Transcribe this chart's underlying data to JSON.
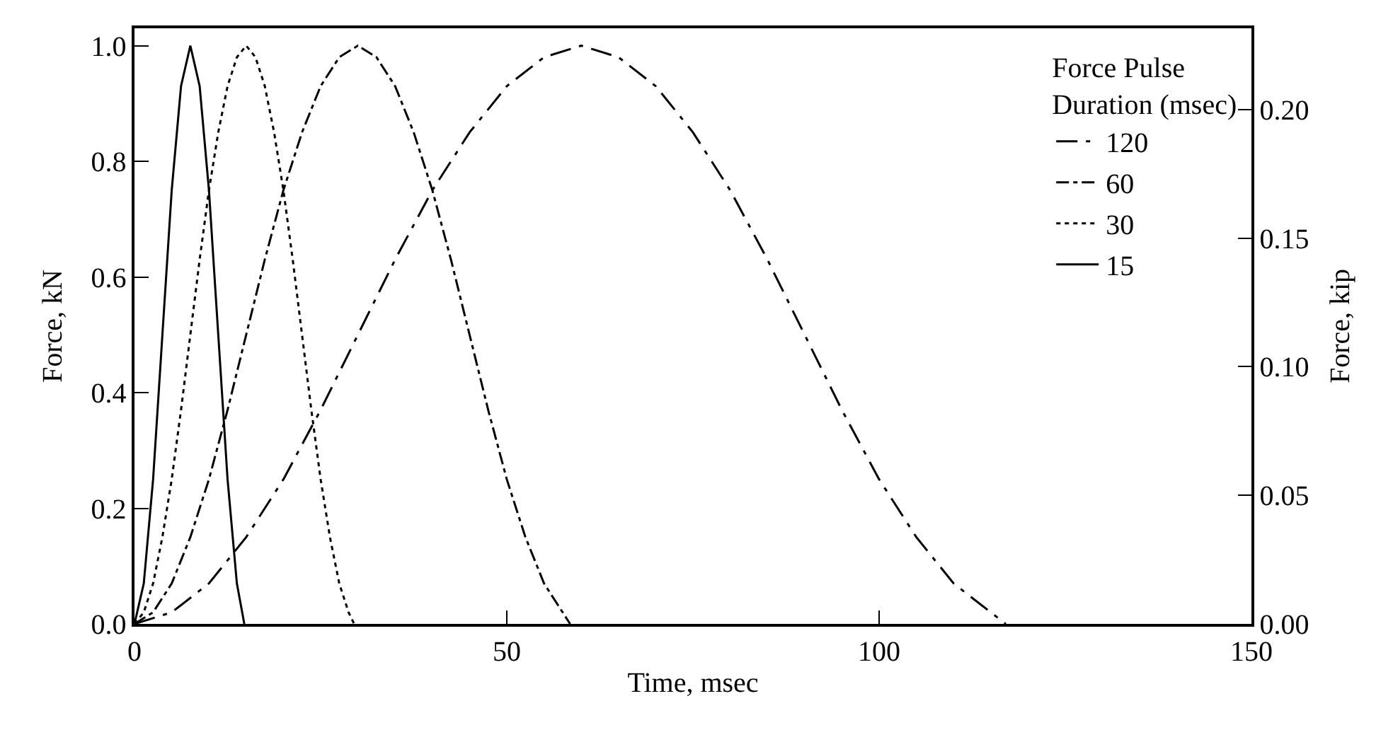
{
  "chart_data": {
    "type": "line",
    "xlabel": "Time, msec",
    "ylabel": "Force, kN",
    "y2label": "Force, kip",
    "legend_title": "Force Pulse\nDuration (msec)",
    "xlim": [
      0,
      150
    ],
    "xticks": [
      0,
      50,
      100,
      150
    ],
    "ylim": [
      0,
      1.03
    ],
    "yticks": [
      {
        "value": 0,
        "label": "0.0"
      },
      0.2,
      0.4,
      0.6,
      0.8,
      {
        "value": 1,
        "label": "1.0"
      }
    ],
    "y2lim": [
      0,
      0.2316
    ],
    "y2ticks": [
      {
        "value": 0,
        "label": "0.00"
      },
      0.05,
      {
        "value": 0.1,
        "label": "0.10"
      },
      0.15,
      {
        "value": 0.2,
        "label": "0.20"
      }
    ],
    "legend": "top right",
    "marker": "none",
    "series": [
      {
        "name": "120",
        "color": "#000000",
        "line_style": "longdashdot",
        "x": [
          0,
          5,
          10,
          15,
          20,
          25,
          30,
          35,
          40,
          45,
          50,
          55,
          60,
          65,
          70,
          75,
          80,
          85,
          90,
          95,
          100,
          105,
          110,
          115,
          117
        ],
        "values": [
          0,
          0.02,
          0.07,
          0.15,
          0.25,
          0.37,
          0.5,
          0.63,
          0.75,
          0.85,
          0.93,
          0.98,
          1.0,
          0.98,
          0.93,
          0.85,
          0.75,
          0.63,
          0.5,
          0.37,
          0.25,
          0.15,
          0.07,
          0.02,
          0
        ]
      },
      {
        "name": "60",
        "color": "#000000",
        "line_style": "dashdot",
        "x": [
          0,
          2.5,
          5,
          7.5,
          10,
          12.5,
          15,
          17.5,
          20,
          22.5,
          25,
          27.5,
          30,
          32.5,
          35,
          37.5,
          40,
          42.5,
          45,
          47.5,
          50,
          52.5,
          55,
          57.5,
          58.5
        ],
        "values": [
          0,
          0.02,
          0.07,
          0.15,
          0.25,
          0.37,
          0.5,
          0.63,
          0.75,
          0.85,
          0.93,
          0.98,
          1.0,
          0.98,
          0.93,
          0.85,
          0.75,
          0.63,
          0.5,
          0.37,
          0.25,
          0.15,
          0.07,
          0.02,
          0
        ]
      },
      {
        "name": "30",
        "color": "#000000",
        "line_style": "dotted",
        "x": [
          0,
          1.25,
          2.5,
          3.75,
          5,
          6.25,
          7.5,
          8.75,
          10,
          11.25,
          12.5,
          13.75,
          15,
          16.25,
          17.5,
          18.75,
          20,
          21.25,
          22.5,
          23.75,
          25,
          26.25,
          27.5,
          28.75,
          29.5
        ],
        "values": [
          0,
          0.02,
          0.07,
          0.15,
          0.25,
          0.37,
          0.5,
          0.63,
          0.75,
          0.85,
          0.93,
          0.98,
          1.0,
          0.98,
          0.93,
          0.85,
          0.75,
          0.63,
          0.5,
          0.37,
          0.25,
          0.15,
          0.07,
          0.02,
          0
        ]
      },
      {
        "name": "15",
        "color": "#000000",
        "line_style": "solid",
        "x": [
          0,
          1.25,
          2.5,
          3.75,
          5,
          6.25,
          7.5,
          8.75,
          10,
          11.25,
          12.5,
          13.75,
          14.75
        ],
        "values": [
          0,
          0.07,
          0.25,
          0.5,
          0.75,
          0.93,
          1.0,
          0.93,
          0.75,
          0.5,
          0.25,
          0.07,
          0
        ]
      }
    ]
  }
}
